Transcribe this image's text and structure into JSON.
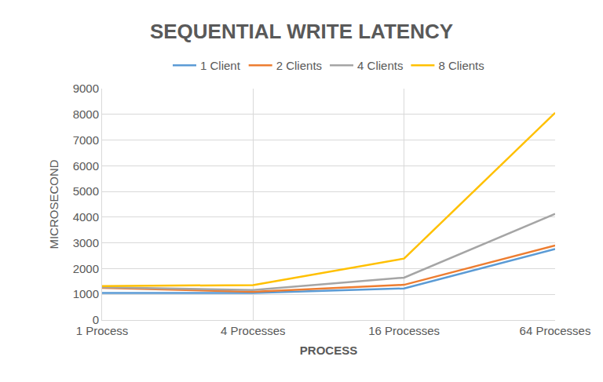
{
  "chart_data": {
    "type": "line",
    "title": "SEQUENTIAL WRITE LATENCY",
    "x_label": "PROCESS",
    "y_label": "MICROSECOND",
    "categories": [
      "1 Process",
      "4 Processes",
      "16 Processes",
      "64 Processes"
    ],
    "series": [
      {
        "name": "1 Client",
        "color": "#5b9bd5",
        "values": [
          1050,
          1050,
          1230,
          2760
        ]
      },
      {
        "name": "2 Clients",
        "color": "#ed7d31",
        "values": [
          1250,
          1100,
          1370,
          2900
        ]
      },
      {
        "name": "4 Clients",
        "color": "#a5a5a5",
        "values": [
          1270,
          1170,
          1650,
          4130
        ]
      },
      {
        "name": "8 Clients",
        "color": "#ffc000",
        "values": [
          1320,
          1360,
          2390,
          8060
        ]
      }
    ],
    "ylim": [
      0,
      9000
    ],
    "yticks": [
      0,
      1000,
      2000,
      3000,
      4000,
      5000,
      6000,
      7000,
      8000,
      9000
    ],
    "grid": true,
    "legend": "top"
  }
}
